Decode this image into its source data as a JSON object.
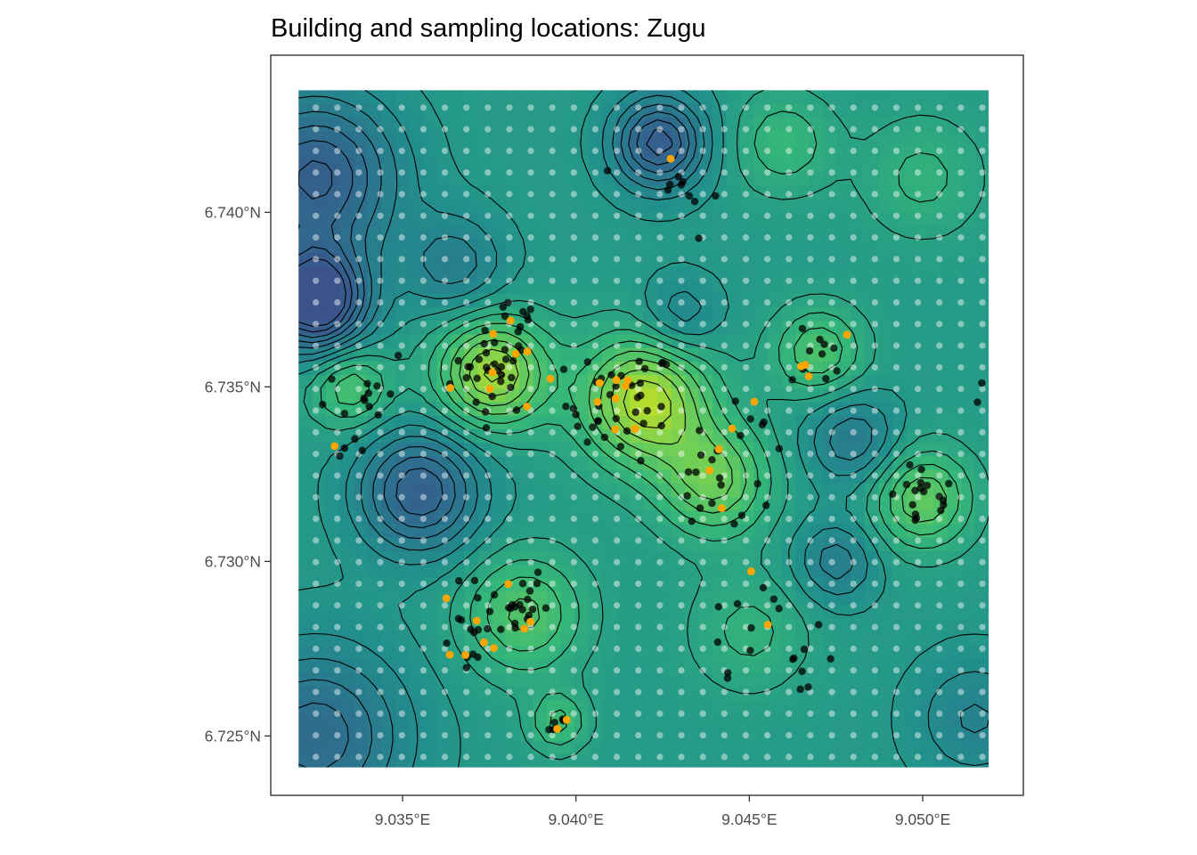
{
  "chart_data": {
    "type": "heatmap",
    "title": "Building and sampling locations: Zugu",
    "xlabel": "",
    "ylabel": "",
    "x_ticks": [
      {
        "value": 9.035,
        "label": "9.035°E"
      },
      {
        "value": 9.04,
        "label": "9.040°E"
      },
      {
        "value": 9.045,
        "label": "9.045°E"
      },
      {
        "value": 9.05,
        "label": "9.050°E"
      }
    ],
    "y_ticks": [
      {
        "value": 6.725,
        "label": "6.725°N"
      },
      {
        "value": 6.73,
        "label": "6.730°N"
      },
      {
        "value": 6.735,
        "label": "6.735°N"
      },
      {
        "value": 6.74,
        "label": "6.740°N"
      }
    ],
    "xlim": [
      9.032,
      9.0519
    ],
    "ylim": [
      6.7241,
      6.7435
    ],
    "panel_xlim": [
      9.0312,
      9.0529
    ],
    "panel_ylim": [
      6.7233,
      6.7445
    ],
    "grid": false,
    "legend": "none",
    "colors": {
      "low": "#35608d",
      "mid": "#21918c",
      "high_mid": "#5ec962",
      "high": "#d0e11c",
      "building": "#000000",
      "sampled_building": "#ffa500",
      "grid_point": "#ffffff",
      "contour": "#000000"
    },
    "surface": {
      "base": 0.5,
      "bumps": [
        {
          "x": 9.0376,
          "y": 6.7354,
          "height": 0.42,
          "spread": 0.0011
        },
        {
          "x": 9.042,
          "y": 6.7346,
          "height": 0.45,
          "spread": 0.0013
        },
        {
          "x": 9.044,
          "y": 6.7323,
          "height": 0.3,
          "spread": 0.0011
        },
        {
          "x": 9.05,
          "y": 6.7318,
          "height": 0.28,
          "spread": 0.001
        },
        {
          "x": 9.047,
          "y": 6.736,
          "height": 0.22,
          "spread": 0.0009
        },
        {
          "x": 9.0385,
          "y": 6.7285,
          "height": 0.24,
          "spread": 0.0012
        },
        {
          "x": 9.0395,
          "y": 6.7254,
          "height": 0.18,
          "spread": 0.0006
        },
        {
          "x": 9.0335,
          "y": 6.735,
          "height": 0.22,
          "spread": 0.0008
        },
        {
          "x": 9.0355,
          "y": 6.732,
          "height": -0.38,
          "spread": 0.0012
        },
        {
          "x": 9.0424,
          "y": 6.742,
          "height": -0.42,
          "spread": 0.0009
        },
        {
          "x": 9.0325,
          "y": 6.7375,
          "height": -0.6,
          "spread": 0.001
        },
        {
          "x": 9.0325,
          "y": 6.741,
          "height": -0.4,
          "spread": 0.0016
        },
        {
          "x": 9.0325,
          "y": 6.725,
          "height": -0.3,
          "spread": 0.0018
        },
        {
          "x": 9.048,
          "y": 6.7335,
          "height": -0.2,
          "spread": 0.0009
        },
        {
          "x": 9.0475,
          "y": 6.73,
          "height": -0.18,
          "spread": 0.0008
        },
        {
          "x": 9.0365,
          "y": 6.7385,
          "height": -0.18,
          "spread": 0.001
        },
        {
          "x": 9.043,
          "y": 6.737,
          "height": -0.15,
          "spread": 0.0008
        },
        {
          "x": 9.046,
          "y": 6.742,
          "height": 0.15,
          "spread": 0.001
        },
        {
          "x": 9.05,
          "y": 6.741,
          "height": 0.12,
          "spread": 0.0012
        },
        {
          "x": 9.0515,
          "y": 6.7255,
          "height": -0.15,
          "spread": 0.0012
        },
        {
          "x": 9.045,
          "y": 6.728,
          "height": 0.12,
          "spread": 0.0012
        }
      ],
      "contour_step": 0.06
    },
    "grid_points": {
      "x_start": 9.0325,
      "x_step": 0.00062,
      "x_count": 32,
      "y_start": 6.7244,
      "y_step": 0.00062,
      "y_count": 32
    },
    "building_clusters": [
      {
        "x": 9.0376,
        "y": 6.7354,
        "count": 28,
        "spread": 0.0006,
        "sampled": 6
      },
      {
        "x": 9.0413,
        "y": 6.7345,
        "count": 36,
        "spread": 0.0008,
        "sampled": 8
      },
      {
        "x": 9.044,
        "y": 6.732,
        "count": 16,
        "spread": 0.0007,
        "sampled": 3
      },
      {
        "x": 9.05,
        "y": 6.7318,
        "count": 18,
        "spread": 0.0005,
        "sampled": 0
      },
      {
        "x": 9.047,
        "y": 6.7358,
        "count": 10,
        "spread": 0.0004,
        "sampled": 4
      },
      {
        "x": 9.038,
        "y": 6.7288,
        "count": 24,
        "spread": 0.0006,
        "sampled": 6
      },
      {
        "x": 9.0368,
        "y": 6.7278,
        "count": 10,
        "spread": 0.0005,
        "sampled": 3
      },
      {
        "x": 9.0394,
        "y": 6.7254,
        "count": 5,
        "spread": 0.0002,
        "sampled": 2
      },
      {
        "x": 9.0385,
        "y": 6.7368,
        "count": 12,
        "spread": 0.0006,
        "sampled": 3
      },
      {
        "x": 9.034,
        "y": 6.735,
        "count": 12,
        "spread": 0.0006,
        "sampled": 0
      },
      {
        "x": 9.043,
        "y": 6.7405,
        "count": 10,
        "spread": 0.0006,
        "sampled": 1
      },
      {
        "x": 9.0452,
        "y": 6.7285,
        "count": 12,
        "spread": 0.0008,
        "sampled": 2
      },
      {
        "x": 9.052,
        "y": 6.7348,
        "count": 10,
        "spread": 0.0005,
        "sampled": 0
      },
      {
        "x": 9.0455,
        "y": 6.734,
        "count": 6,
        "spread": 0.0005,
        "sampled": 2
      },
      {
        "x": 9.0333,
        "y": 6.7333,
        "count": 4,
        "spread": 0.0003,
        "sampled": 1
      },
      {
        "x": 9.0463,
        "y": 6.7268,
        "count": 6,
        "spread": 0.0005,
        "sampled": 0
      }
    ]
  }
}
